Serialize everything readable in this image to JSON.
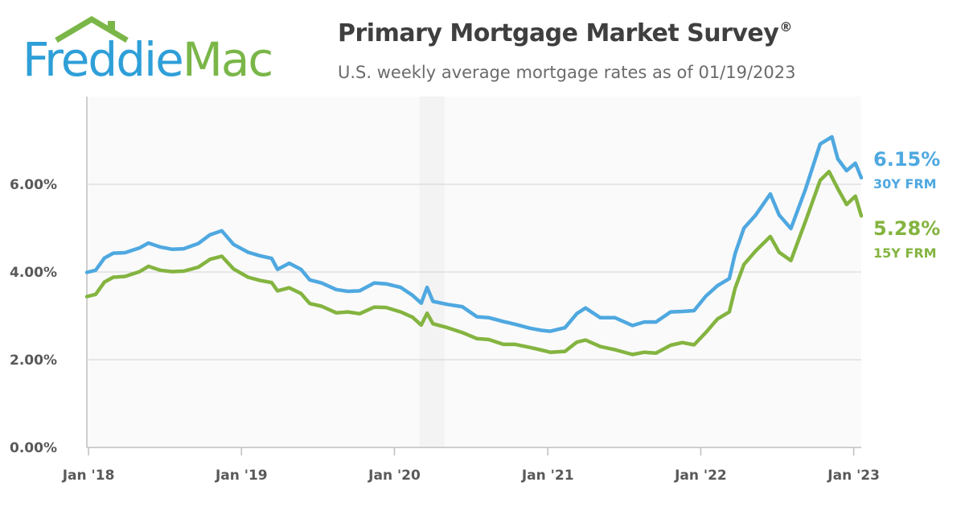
{
  "logo": {
    "word1": "Freddie",
    "word2": "Mac"
  },
  "header": {
    "title": "Primary Mortgage Market Survey",
    "title_mark": "®",
    "subtitle": "U.S. weekly average mortgage rates as of 01/19/2023"
  },
  "colors": {
    "frm30": "#4fa8e0",
    "frm15": "#84b440",
    "brand_blue": "#2e9fd8",
    "brand_green": "#7ab648",
    "grid": "#d9d9d9",
    "axis": "#bfbfbf",
    "shade": "#f3f3f3"
  },
  "chart_data": {
    "type": "line",
    "title": "",
    "xlabel": "",
    "ylabel": "",
    "ylim": [
      0,
      8
    ],
    "xlim": [
      "2017-12-28",
      "2023-01-19"
    ],
    "yticks": [
      0,
      2,
      4,
      6
    ],
    "ytick_labels": [
      "0.00%",
      "2.00%",
      "4.00%",
      "6.00%"
    ],
    "xticks": [
      "2018-01-01",
      "2019-01-01",
      "2020-01-01",
      "2021-01-01",
      "2022-01-01",
      "2023-01-01"
    ],
    "xtick_labels": [
      "Jan '18",
      "Jan '19",
      "Jan '20",
      "Jan '21",
      "Jan '22",
      "Jan '23"
    ],
    "grid": true,
    "shaded_band": [
      "2020-03-01",
      "2020-04-30"
    ],
    "series": [
      {
        "name": "30Y FRM",
        "end_label": "6.15%",
        "points": [
          [
            "2017-12-28",
            3.99
          ],
          [
            "2018-01-18",
            4.04
          ],
          [
            "2018-02-08",
            4.32
          ],
          [
            "2018-03-01",
            4.43
          ],
          [
            "2018-03-29",
            4.44
          ],
          [
            "2018-05-03",
            4.55
          ],
          [
            "2018-05-24",
            4.66
          ],
          [
            "2018-06-21",
            4.57
          ],
          [
            "2018-07-19",
            4.52
          ],
          [
            "2018-08-16",
            4.53
          ],
          [
            "2018-09-20",
            4.65
          ],
          [
            "2018-10-18",
            4.85
          ],
          [
            "2018-11-15",
            4.94
          ],
          [
            "2018-12-13",
            4.63
          ],
          [
            "2019-01-17",
            4.45
          ],
          [
            "2019-02-14",
            4.37
          ],
          [
            "2019-03-14",
            4.31
          ],
          [
            "2019-03-28",
            4.06
          ],
          [
            "2019-04-25",
            4.2
          ],
          [
            "2019-05-23",
            4.06
          ],
          [
            "2019-06-13",
            3.82
          ],
          [
            "2019-07-11",
            3.75
          ],
          [
            "2019-08-15",
            3.6
          ],
          [
            "2019-09-12",
            3.56
          ],
          [
            "2019-10-10",
            3.57
          ],
          [
            "2019-11-14",
            3.75
          ],
          [
            "2019-12-12",
            3.73
          ],
          [
            "2020-01-16",
            3.65
          ],
          [
            "2020-02-13",
            3.47
          ],
          [
            "2020-03-05",
            3.29
          ],
          [
            "2020-03-19",
            3.65
          ],
          [
            "2020-04-02",
            3.33
          ],
          [
            "2020-05-07",
            3.26
          ],
          [
            "2020-06-11",
            3.21
          ],
          [
            "2020-07-16",
            2.98
          ],
          [
            "2020-08-13",
            2.96
          ],
          [
            "2020-09-17",
            2.87
          ],
          [
            "2020-10-15",
            2.81
          ],
          [
            "2020-11-19",
            2.72
          ],
          [
            "2020-12-17",
            2.67
          ],
          [
            "2021-01-07",
            2.65
          ],
          [
            "2021-02-11",
            2.73
          ],
          [
            "2021-03-11",
            3.05
          ],
          [
            "2021-04-01",
            3.18
          ],
          [
            "2021-05-06",
            2.96
          ],
          [
            "2021-06-10",
            2.96
          ],
          [
            "2021-07-22",
            2.78
          ],
          [
            "2021-08-19",
            2.86
          ],
          [
            "2021-09-16",
            2.86
          ],
          [
            "2021-10-21",
            3.09
          ],
          [
            "2021-11-18",
            3.1
          ],
          [
            "2021-12-16",
            3.12
          ],
          [
            "2022-01-13",
            3.45
          ],
          [
            "2022-02-10",
            3.69
          ],
          [
            "2022-03-10",
            3.85
          ],
          [
            "2022-03-24",
            4.42
          ],
          [
            "2022-04-14",
            5.0
          ],
          [
            "2022-05-12",
            5.3
          ],
          [
            "2022-06-16",
            5.78
          ],
          [
            "2022-07-07",
            5.3
          ],
          [
            "2022-08-04",
            4.99
          ],
          [
            "2022-09-08",
            5.89
          ],
          [
            "2022-10-13",
            6.92
          ],
          [
            "2022-11-10",
            7.08
          ],
          [
            "2022-11-24",
            6.58
          ],
          [
            "2022-12-15",
            6.31
          ],
          [
            "2023-01-05",
            6.48
          ],
          [
            "2023-01-19",
            6.15
          ]
        ]
      },
      {
        "name": "15Y FRM",
        "end_label": "5.28%",
        "points": [
          [
            "2017-12-28",
            3.44
          ],
          [
            "2018-01-18",
            3.49
          ],
          [
            "2018-02-08",
            3.77
          ],
          [
            "2018-03-01",
            3.88
          ],
          [
            "2018-03-29",
            3.9
          ],
          [
            "2018-05-03",
            4.01
          ],
          [
            "2018-05-24",
            4.13
          ],
          [
            "2018-06-21",
            4.04
          ],
          [
            "2018-07-19",
            4.01
          ],
          [
            "2018-08-16",
            4.02
          ],
          [
            "2018-09-20",
            4.11
          ],
          [
            "2018-10-18",
            4.29
          ],
          [
            "2018-11-15",
            4.36
          ],
          [
            "2018-12-13",
            4.07
          ],
          [
            "2019-01-17",
            3.88
          ],
          [
            "2019-02-14",
            3.81
          ],
          [
            "2019-03-14",
            3.76
          ],
          [
            "2019-03-28",
            3.57
          ],
          [
            "2019-04-25",
            3.64
          ],
          [
            "2019-05-23",
            3.51
          ],
          [
            "2019-06-13",
            3.28
          ],
          [
            "2019-07-11",
            3.22
          ],
          [
            "2019-08-15",
            3.07
          ],
          [
            "2019-09-12",
            3.09
          ],
          [
            "2019-10-10",
            3.05
          ],
          [
            "2019-11-14",
            3.2
          ],
          [
            "2019-12-12",
            3.19
          ],
          [
            "2020-01-16",
            3.09
          ],
          [
            "2020-02-13",
            2.97
          ],
          [
            "2020-03-05",
            2.79
          ],
          [
            "2020-03-19",
            3.06
          ],
          [
            "2020-04-02",
            2.82
          ],
          [
            "2020-05-07",
            2.73
          ],
          [
            "2020-06-11",
            2.62
          ],
          [
            "2020-07-16",
            2.48
          ],
          [
            "2020-08-13",
            2.46
          ],
          [
            "2020-09-17",
            2.35
          ],
          [
            "2020-10-15",
            2.35
          ],
          [
            "2020-11-19",
            2.28
          ],
          [
            "2020-12-17",
            2.22
          ],
          [
            "2021-01-07",
            2.17
          ],
          [
            "2021-02-11",
            2.19
          ],
          [
            "2021-03-11",
            2.4
          ],
          [
            "2021-04-01",
            2.45
          ],
          [
            "2021-05-06",
            2.3
          ],
          [
            "2021-06-10",
            2.23
          ],
          [
            "2021-07-22",
            2.12
          ],
          [
            "2021-08-19",
            2.17
          ],
          [
            "2021-09-16",
            2.15
          ],
          [
            "2021-10-21",
            2.33
          ],
          [
            "2021-11-18",
            2.39
          ],
          [
            "2021-12-16",
            2.34
          ],
          [
            "2022-01-13",
            2.62
          ],
          [
            "2022-02-10",
            2.93
          ],
          [
            "2022-03-10",
            3.09
          ],
          [
            "2022-03-24",
            3.63
          ],
          [
            "2022-04-14",
            4.17
          ],
          [
            "2022-05-12",
            4.48
          ],
          [
            "2022-06-16",
            4.81
          ],
          [
            "2022-07-07",
            4.45
          ],
          [
            "2022-08-04",
            4.26
          ],
          [
            "2022-09-08",
            5.16
          ],
          [
            "2022-10-13",
            6.09
          ],
          [
            "2022-11-03",
            6.29
          ],
          [
            "2022-11-24",
            5.9
          ],
          [
            "2022-12-15",
            5.54
          ],
          [
            "2023-01-05",
            5.73
          ],
          [
            "2023-01-19",
            5.28
          ]
        ]
      }
    ]
  }
}
